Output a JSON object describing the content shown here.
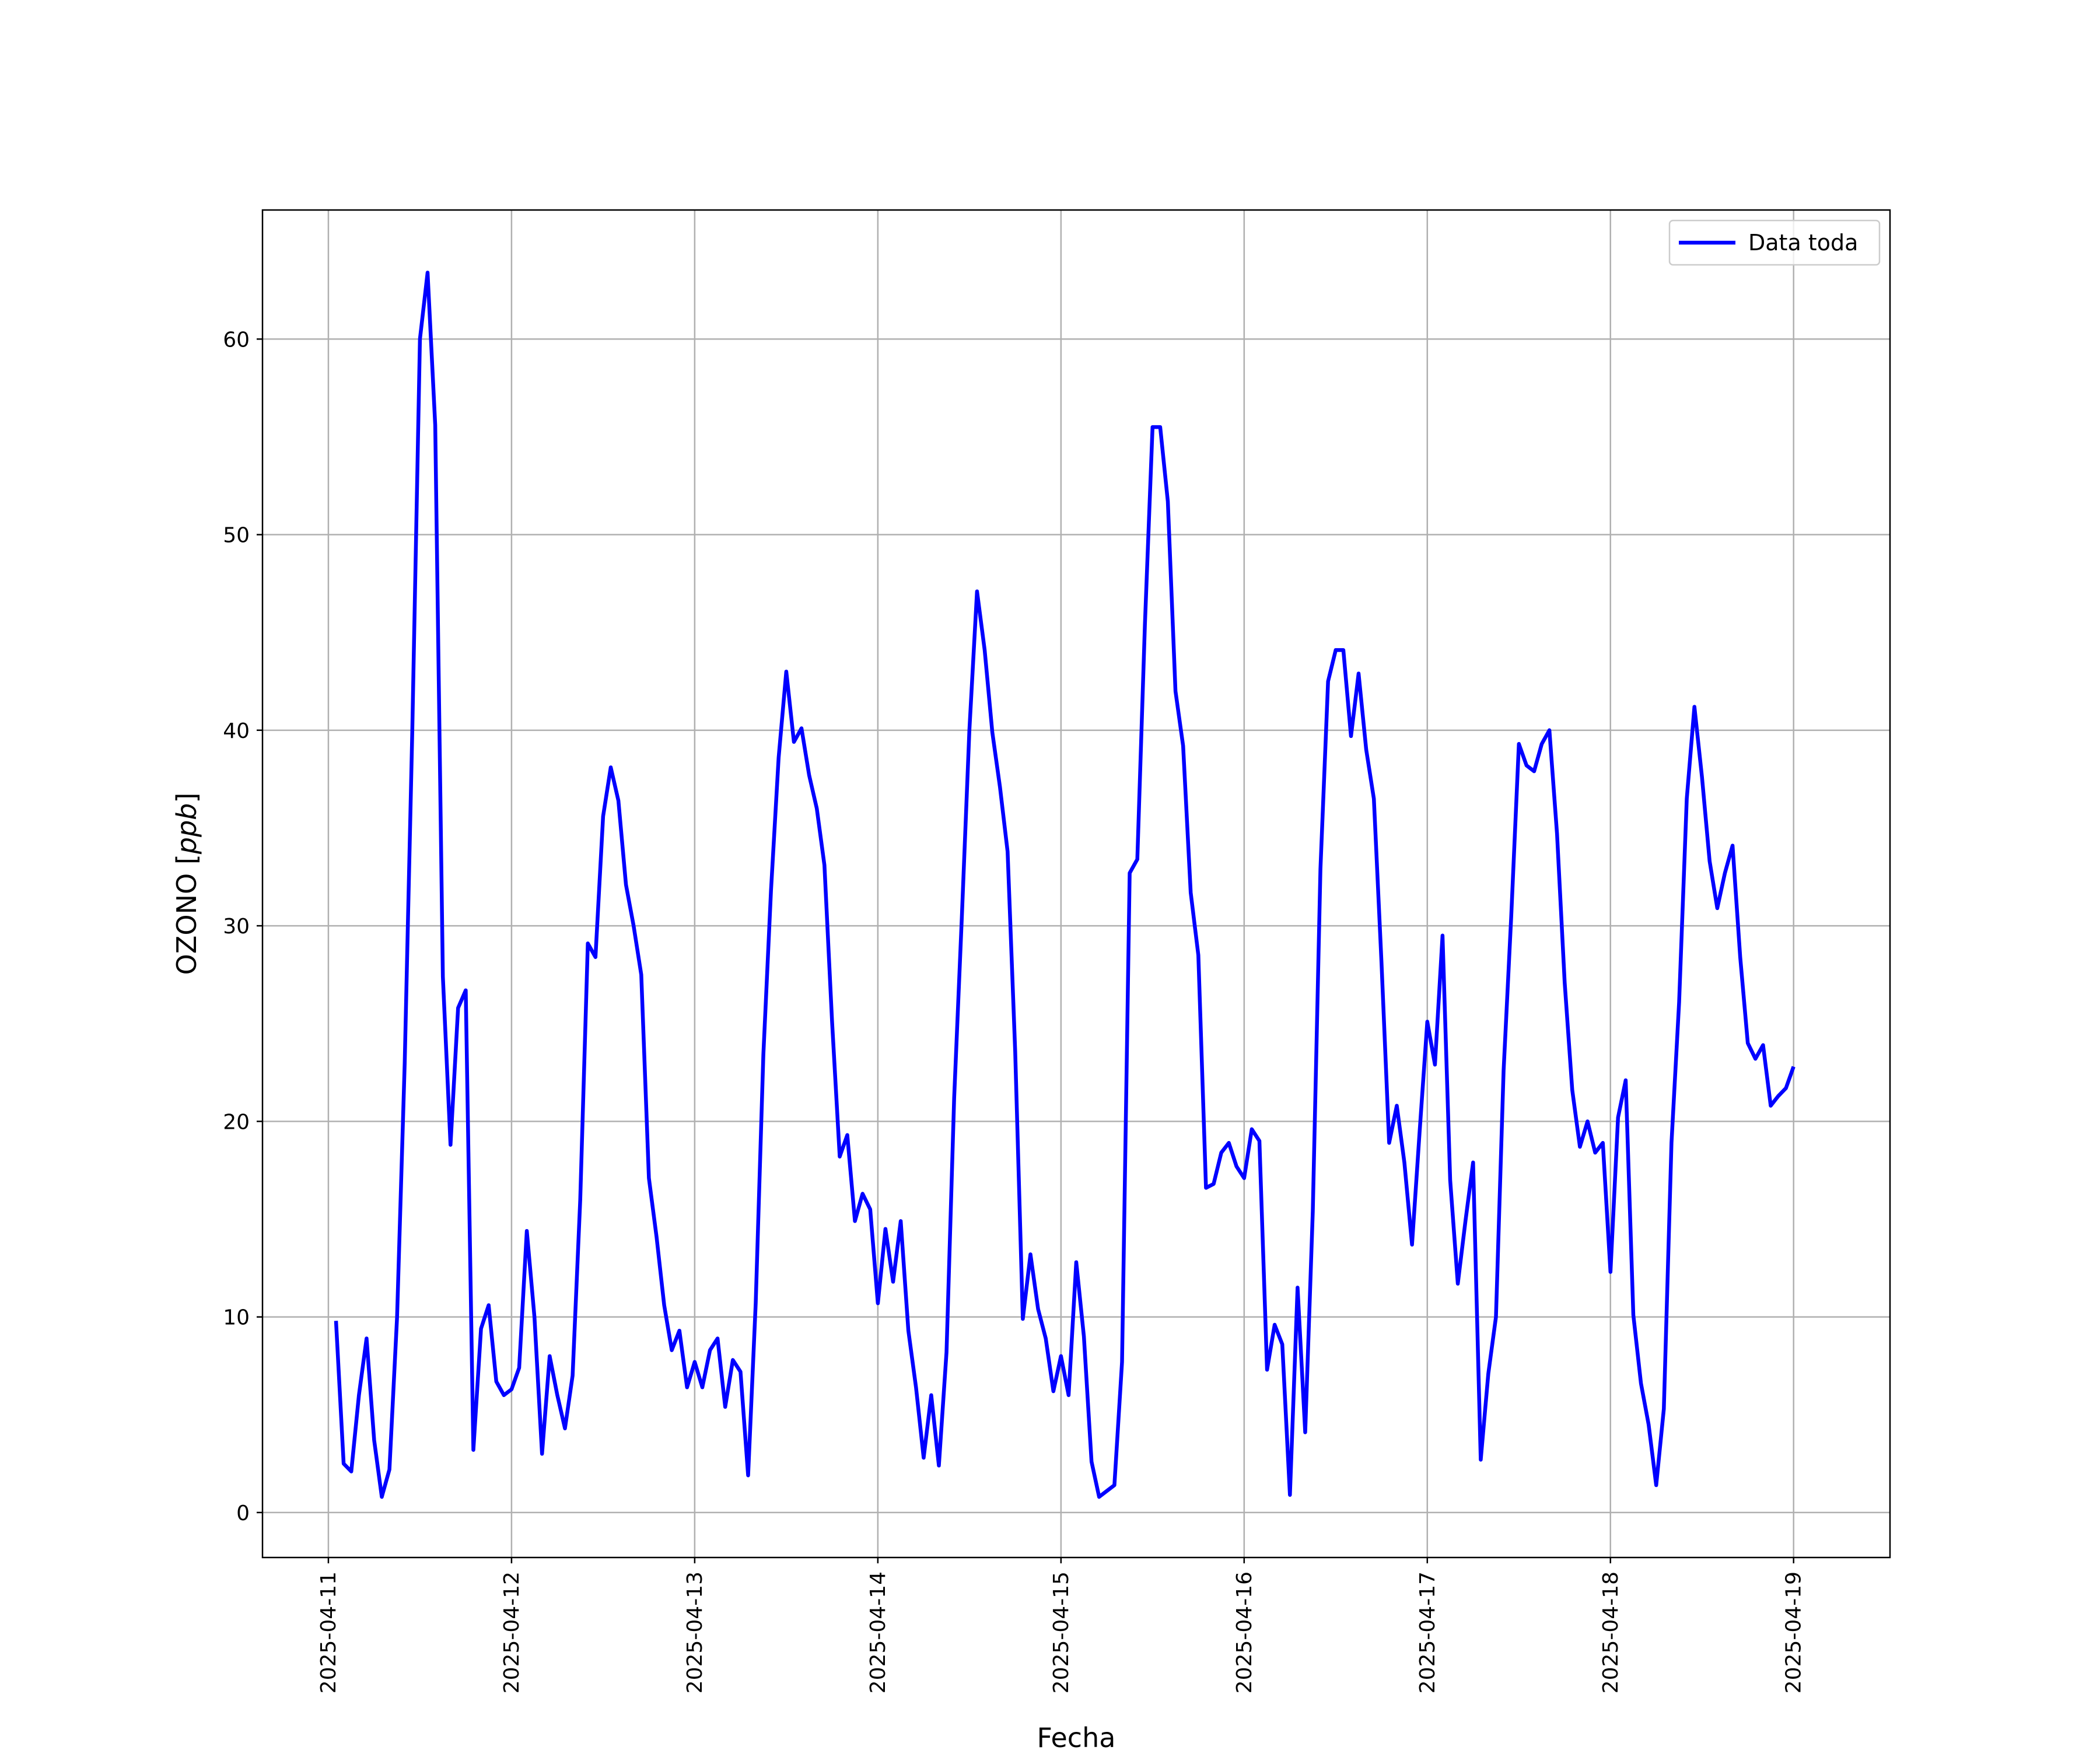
{
  "chart_data": {
    "type": "line",
    "title": "",
    "xlabel": "Fecha",
    "ylabel": "OZONO [ppb]",
    "ylabel_text": "OZONO [",
    "ylabel_unit": "ppb",
    "ylabel_close": "]",
    "xlim": [
      "2025-04-10 15:22",
      "2025-04-19 12:38"
    ],
    "ylim": [
      -2.3,
      66.6
    ],
    "grid": true,
    "legend_position": "top-right",
    "x_ticks": [
      "2025-04-11",
      "2025-04-12",
      "2025-04-13",
      "2025-04-14",
      "2025-04-15",
      "2025-04-16",
      "2025-04-17",
      "2025-04-18",
      "2025-04-19"
    ],
    "y_ticks": [
      0,
      10,
      20,
      30,
      40,
      50,
      60
    ],
    "series": [
      {
        "name": "Data toda",
        "color": "#0000ff",
        "x": [
          "2025-04-11 01:00",
          "2025-04-11 02:00",
          "2025-04-11 03:00",
          "2025-04-11 04:00",
          "2025-04-11 05:00",
          "2025-04-11 06:00",
          "2025-04-11 07:00",
          "2025-04-11 08:00",
          "2025-04-11 09:00",
          "2025-04-11 10:00",
          "2025-04-11 11:00",
          "2025-04-11 12:00",
          "2025-04-11 13:00",
          "2025-04-11 14:00",
          "2025-04-11 15:00",
          "2025-04-11 16:00",
          "2025-04-11 17:00",
          "2025-04-11 18:00",
          "2025-04-11 19:00",
          "2025-04-11 20:00",
          "2025-04-11 21:00",
          "2025-04-11 22:00",
          "2025-04-11 23:00",
          "2025-04-12 00:00",
          "2025-04-12 01:00",
          "2025-04-12 02:00",
          "2025-04-12 03:00",
          "2025-04-12 04:00",
          "2025-04-12 05:00",
          "2025-04-12 06:00",
          "2025-04-12 07:00",
          "2025-04-12 08:00",
          "2025-04-12 09:00",
          "2025-04-12 10:00",
          "2025-04-12 11:00",
          "2025-04-12 12:00",
          "2025-04-12 13:00",
          "2025-04-12 14:00",
          "2025-04-12 15:00",
          "2025-04-12 16:00",
          "2025-04-12 17:00",
          "2025-04-12 18:00",
          "2025-04-12 19:00",
          "2025-04-12 20:00",
          "2025-04-12 21:00",
          "2025-04-12 22:00",
          "2025-04-12 23:00",
          "2025-04-13 00:00",
          "2025-04-13 01:00",
          "2025-04-13 02:00",
          "2025-04-13 03:00",
          "2025-04-13 04:00",
          "2025-04-13 05:00",
          "2025-04-13 06:00",
          "2025-04-13 07:00",
          "2025-04-13 08:00",
          "2025-04-13 09:00",
          "2025-04-13 10:00",
          "2025-04-13 11:00",
          "2025-04-13 12:00",
          "2025-04-13 13:00",
          "2025-04-13 14:00",
          "2025-04-13 15:00",
          "2025-04-13 16:00",
          "2025-04-13 17:00",
          "2025-04-13 18:00",
          "2025-04-13 19:00",
          "2025-04-13 20:00",
          "2025-04-13 21:00",
          "2025-04-13 22:00",
          "2025-04-13 23:00",
          "2025-04-14 00:00",
          "2025-04-14 01:00",
          "2025-04-14 02:00",
          "2025-04-14 03:00",
          "2025-04-14 04:00",
          "2025-04-14 05:00",
          "2025-04-14 06:00",
          "2025-04-14 07:00",
          "2025-04-14 08:00",
          "2025-04-14 09:00",
          "2025-04-14 10:00",
          "2025-04-14 11:00",
          "2025-04-14 12:00",
          "2025-04-14 13:00",
          "2025-04-14 14:00",
          "2025-04-14 15:00",
          "2025-04-14 16:00",
          "2025-04-14 17:00",
          "2025-04-14 18:00",
          "2025-04-14 19:00",
          "2025-04-14 20:00",
          "2025-04-14 21:00",
          "2025-04-14 22:00",
          "2025-04-14 23:00",
          "2025-04-15 00:00",
          "2025-04-15 01:00",
          "2025-04-15 02:00",
          "2025-04-15 03:00",
          "2025-04-15 04:00",
          "2025-04-15 05:00",
          "2025-04-15 06:00",
          "2025-04-15 07:00",
          "2025-04-15 08:00",
          "2025-04-15 09:00",
          "2025-04-15 10:00",
          "2025-04-15 11:00",
          "2025-04-15 12:00",
          "2025-04-15 13:00",
          "2025-04-15 14:00",
          "2025-04-15 15:00",
          "2025-04-15 16:00",
          "2025-04-15 17:00",
          "2025-04-15 18:00",
          "2025-04-15 19:00",
          "2025-04-15 20:00",
          "2025-04-15 21:00",
          "2025-04-15 22:00",
          "2025-04-15 23:00",
          "2025-04-16 00:00",
          "2025-04-16 01:00",
          "2025-04-16 02:00",
          "2025-04-16 03:00",
          "2025-04-16 04:00",
          "2025-04-16 05:00",
          "2025-04-16 06:00",
          "2025-04-16 07:00",
          "2025-04-16 08:00",
          "2025-04-16 09:00",
          "2025-04-16 10:00",
          "2025-04-16 11:00",
          "2025-04-16 12:00",
          "2025-04-16 13:00",
          "2025-04-16 14:00",
          "2025-04-16 15:00",
          "2025-04-16 16:00",
          "2025-04-16 17:00",
          "2025-04-16 18:00",
          "2025-04-16 19:00",
          "2025-04-16 20:00",
          "2025-04-16 21:00",
          "2025-04-16 22:00",
          "2025-04-16 23:00",
          "2025-04-17 00:00",
          "2025-04-17 01:00",
          "2025-04-17 02:00",
          "2025-04-17 03:00",
          "2025-04-17 04:00",
          "2025-04-17 05:00",
          "2025-04-17 06:00",
          "2025-04-17 07:00",
          "2025-04-17 08:00",
          "2025-04-17 09:00",
          "2025-04-17 10:00",
          "2025-04-17 11:00",
          "2025-04-17 12:00",
          "2025-04-17 13:00",
          "2025-04-17 14:00",
          "2025-04-17 15:00",
          "2025-04-17 16:00",
          "2025-04-17 17:00",
          "2025-04-17 18:00",
          "2025-04-17 19:00",
          "2025-04-17 20:00",
          "2025-04-17 21:00",
          "2025-04-17 22:00",
          "2025-04-17 23:00",
          "2025-04-18 00:00",
          "2025-04-18 01:00",
          "2025-04-18 02:00",
          "2025-04-18 03:00",
          "2025-04-18 04:00",
          "2025-04-18 05:00",
          "2025-04-18 06:00",
          "2025-04-18 07:00",
          "2025-04-18 08:00",
          "2025-04-18 09:00",
          "2025-04-18 10:00",
          "2025-04-18 11:00",
          "2025-04-18 12:00",
          "2025-04-18 13:00",
          "2025-04-18 14:00",
          "2025-04-18 15:00",
          "2025-04-18 16:00",
          "2025-04-18 17:00",
          "2025-04-18 18:00",
          "2025-04-18 19:00",
          "2025-04-18 20:00",
          "2025-04-18 21:00",
          "2025-04-18 22:00",
          "2025-04-18 23:00",
          "2025-04-19 00:00"
        ],
        "y": [
          9.8,
          2.5,
          2.1,
          6.0,
          8.9,
          3.7,
          0.8,
          2.2,
          10.0,
          23.0,
          40.0,
          60.0,
          63.4,
          55.6,
          27.4,
          18.8,
          25.8,
          26.7,
          3.2,
          9.4,
          10.6,
          6.7,
          6.0,
          6.3,
          7.4,
          14.4,
          10.0,
          3.0,
          8.0,
          6.0,
          4.3,
          7.0,
          16.0,
          29.1,
          28.4,
          35.6,
          38.1,
          36.4,
          32.1,
          30.0,
          27.5,
          17.1,
          14.1,
          10.6,
          8.3,
          9.3,
          6.4,
          7.7,
          6.4,
          8.3,
          8.9,
          5.4,
          7.8,
          7.2,
          1.9,
          10.7,
          23.4,
          31.8,
          38.6,
          43.0,
          39.4,
          40.1,
          37.7,
          36.0,
          33.1,
          25.1,
          18.2,
          19.3,
          14.9,
          16.3,
          15.5,
          10.7,
          14.5,
          11.8,
          14.9,
          9.3,
          6.4,
          2.8,
          6.0,
          2.4,
          8.2,
          21.2,
          30.4,
          40.0,
          47.1,
          44.1,
          39.9,
          37.1,
          33.8,
          23.6,
          9.9,
          13.2,
          10.4,
          8.9,
          6.2,
          8.0,
          6.0,
          12.8,
          9.0,
          2.6,
          0.8,
          1.1,
          1.4,
          7.7,
          32.7,
          33.4,
          45.4,
          55.5,
          55.5,
          51.7,
          42.0,
          39.2,
          31.7,
          28.5,
          16.6,
          16.8,
          18.4,
          18.9,
          17.7,
          17.1,
          19.6,
          19.0,
          7.3,
          9.6,
          8.6,
          0.9,
          11.5,
          4.1,
          15.4,
          32.9,
          42.5,
          44.1,
          44.1,
          39.7,
          42.9,
          39.0,
          36.5,
          28.1,
          18.9,
          20.8,
          17.9,
          13.7,
          19.5,
          25.1,
          22.9,
          29.5,
          17.0,
          11.7,
          14.9,
          17.9,
          2.7,
          7.1,
          10.0,
          22.6,
          30.5,
          39.3,
          38.2,
          37.9,
          39.3,
          40.0,
          34.7,
          27.1,
          21.6,
          18.7,
          20.0,
          18.4,
          18.9,
          12.3,
          20.2,
          22.1,
          10.1,
          6.6,
          4.5,
          1.4,
          5.3,
          18.9,
          26.1,
          36.5,
          41.2,
          37.6,
          33.3,
          30.9,
          32.7,
          34.1,
          28.4,
          24.0,
          23.2,
          23.9,
          20.8,
          21.3,
          21.7,
          22.8
        ]
      }
    ]
  }
}
